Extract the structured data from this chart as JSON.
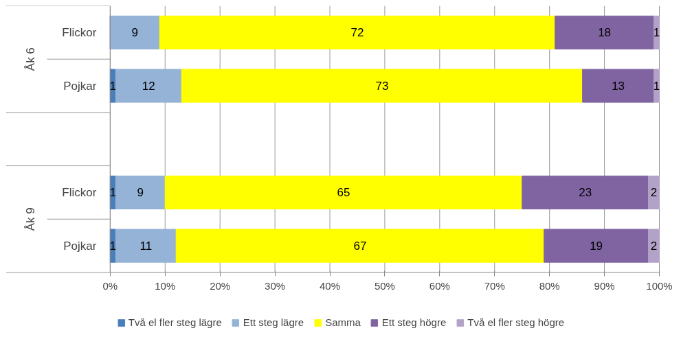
{
  "chart_data": {
    "type": "bar",
    "orientation": "horizontal",
    "stacked": true,
    "categories": [
      "Flickor",
      "Pojkar",
      null,
      "Flickor",
      "Pojkar"
    ],
    "annotations": [
      "Åk 6",
      "Åk 9"
    ],
    "series": [
      {
        "name": "Två el fler steg lägre",
        "color": "#4a7ebb",
        "values": [
          0,
          1,
          null,
          1,
          1
        ],
        "value_labels": [
          null,
          "1",
          null,
          "1",
          "1"
        ]
      },
      {
        "name": "Ett steg lägre",
        "color": "#95b3d7",
        "values": [
          9,
          12,
          null,
          9,
          11
        ],
        "value_labels": [
          "9",
          "12",
          null,
          "9",
          "11"
        ]
      },
      {
        "name": "Samma",
        "color": "#ffff00",
        "values": [
          72,
          73,
          null,
          65,
          67
        ],
        "value_labels": [
          "72",
          "73",
          null,
          "65",
          "67"
        ]
      },
      {
        "name": "Ett steg högre",
        "color": "#8064a2",
        "values": [
          18,
          13,
          null,
          23,
          19
        ],
        "value_labels": [
          "18",
          "13",
          null,
          "23",
          "19"
        ]
      },
      {
        "name": "Två el fler steg högre",
        "color": "#b3a2c7",
        "values": [
          1,
          1,
          null,
          2,
          2
        ],
        "value_labels": [
          "1",
          "1",
          null,
          "2",
          "2"
        ]
      }
    ],
    "xlim": [
      0,
      100
    ],
    "xticks": [
      {
        "value": 0,
        "label": "0%"
      },
      {
        "value": 10,
        "label": "10%"
      },
      {
        "value": 20,
        "label": "20%"
      },
      {
        "value": 30,
        "label": "30%"
      },
      {
        "value": 40,
        "label": "40%"
      },
      {
        "value": 50,
        "label": "50%"
      },
      {
        "value": 60,
        "label": "60%"
      },
      {
        "value": 70,
        "label": "70%"
      },
      {
        "value": 80,
        "label": "80%"
      },
      {
        "value": 90,
        "label": "90%"
      },
      {
        "value": 100,
        "label": "100%"
      }
    ],
    "grid": "x",
    "legend": "bottom"
  }
}
